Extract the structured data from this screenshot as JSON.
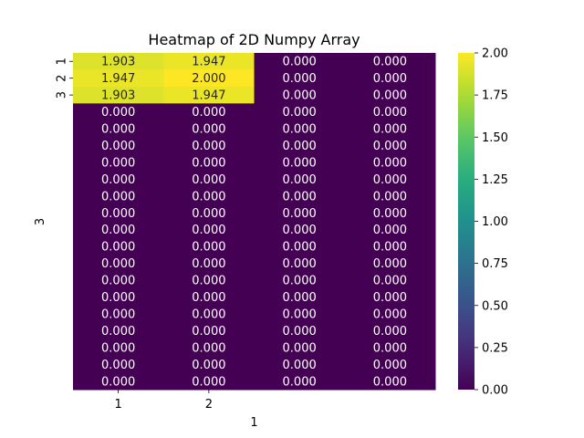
{
  "chart_data": {
    "type": "heatmap",
    "title": "Heatmap of 2D Numpy Array",
    "xlabel": "1",
    "ylabel": "3",
    "x_tick_labels": [
      "1",
      "2"
    ],
    "y_tick_labels": [
      "1",
      "2",
      "3"
    ],
    "values": [
      [
        1.903,
        1.947,
        0.0,
        0.0
      ],
      [
        1.947,
        2.0,
        0.0,
        0.0
      ],
      [
        1.903,
        1.947,
        0.0,
        0.0
      ],
      [
        0.0,
        0.0,
        0.0,
        0.0
      ],
      [
        0.0,
        0.0,
        0.0,
        0.0
      ],
      [
        0.0,
        0.0,
        0.0,
        0.0
      ],
      [
        0.0,
        0.0,
        0.0,
        0.0
      ],
      [
        0.0,
        0.0,
        0.0,
        0.0
      ],
      [
        0.0,
        0.0,
        0.0,
        0.0
      ],
      [
        0.0,
        0.0,
        0.0,
        0.0
      ],
      [
        0.0,
        0.0,
        0.0,
        0.0
      ],
      [
        0.0,
        0.0,
        0.0,
        0.0
      ],
      [
        0.0,
        0.0,
        0.0,
        0.0
      ],
      [
        0.0,
        0.0,
        0.0,
        0.0
      ],
      [
        0.0,
        0.0,
        0.0,
        0.0
      ],
      [
        0.0,
        0.0,
        0.0,
        0.0
      ],
      [
        0.0,
        0.0,
        0.0,
        0.0
      ],
      [
        0.0,
        0.0,
        0.0,
        0.0
      ],
      [
        0.0,
        0.0,
        0.0,
        0.0
      ],
      [
        0.0,
        0.0,
        0.0,
        0.0
      ]
    ],
    "colormap": "viridis",
    "vmin": 0.0,
    "vmax": 2.0,
    "colorbar_ticks": [
      "0.00",
      "0.25",
      "0.50",
      "0.75",
      "1.00",
      "1.25",
      "1.50",
      "1.75",
      "2.00"
    ],
    "annotations": true,
    "grid": false
  }
}
